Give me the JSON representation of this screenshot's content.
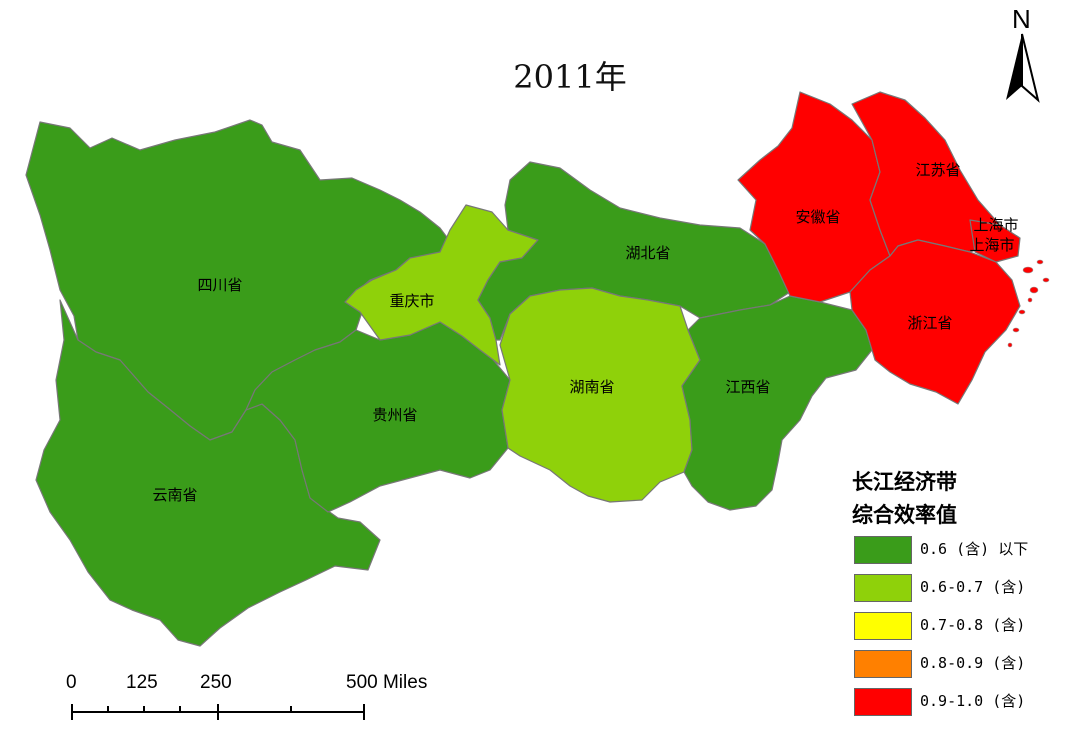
{
  "title": "2011年",
  "north_arrow": {
    "letter": "N",
    "icon": "north-arrow-icon"
  },
  "regions": [
    {
      "id": "sichuan",
      "name": "四川省",
      "class": "0.6 (含) 以下",
      "color": "#3a9c1a"
    },
    {
      "id": "yunnan",
      "name": "云南省",
      "class": "0.6 (含) 以下",
      "color": "#3a9c1a"
    },
    {
      "id": "guizhou",
      "name": "贵州省",
      "class": "0.6 (含) 以下",
      "color": "#3a9c1a"
    },
    {
      "id": "chongqing",
      "name": "重庆市",
      "class": "0.6-0.7 (含)",
      "color": "#8fd10a"
    },
    {
      "id": "hubei",
      "name": "湖北省",
      "class": "0.6 (含) 以下",
      "color": "#3a9c1a"
    },
    {
      "id": "hunan",
      "name": "湖南省",
      "class": "0.6-0.7 (含)",
      "color": "#8fd10a"
    },
    {
      "id": "jiangxi",
      "name": "江西省",
      "class": "0.6 (含) 以下",
      "color": "#3a9c1a"
    },
    {
      "id": "anhui",
      "name": "安徽省",
      "class": "0.9-1.0 (含)",
      "color": "#ff0000"
    },
    {
      "id": "jiangsu",
      "name": "江苏省",
      "class": "0.9-1.0 (含)",
      "color": "#ff0000"
    },
    {
      "id": "zhejiang",
      "name": "浙江省",
      "class": "0.9-1.0 (含)",
      "color": "#ff0000"
    },
    {
      "id": "shanghai",
      "name": "上海市",
      "class": "0.9-1.0 (含)",
      "color": "#ff0000"
    }
  ],
  "legend": {
    "title_line1": "长江经济带",
    "title_line2": "综合效率值",
    "items": [
      {
        "label": "0.6 (含) 以下",
        "color": "#3a9c1a"
      },
      {
        "label": "0.6-0.7 (含)",
        "color": "#8fd10a"
      },
      {
        "label": "0.7-0.8 (含)",
        "color": "#ffff00"
      },
      {
        "label": "0.8-0.9 (含)",
        "color": "#ff8000"
      },
      {
        "label": "0.9-1.0 (含)",
        "color": "#ff0000"
      }
    ]
  },
  "scale_bar": {
    "labels": [
      "0",
      "125",
      "250",
      "500 Miles"
    ]
  },
  "colors": {
    "border": "#777777",
    "background": "#ffffff"
  }
}
